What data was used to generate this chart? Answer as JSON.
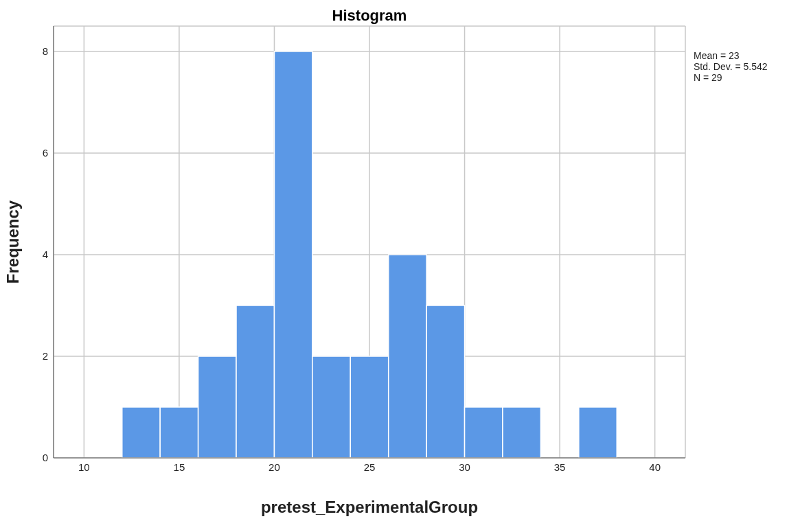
{
  "chart_data": {
    "type": "histogram",
    "title": "Histogram",
    "xlabel": "pretest_ExperimentalGroup",
    "ylabel": "Frequency",
    "bins": [
      12,
      14,
      16,
      18,
      20,
      22,
      24,
      26,
      28,
      30,
      32,
      34,
      36,
      38
    ],
    "values": [
      1,
      1,
      2,
      3,
      8,
      2,
      2,
      4,
      3,
      1,
      1,
      0,
      1
    ],
    "color": "#5b98e6",
    "xlim": [
      8.4,
      41.6
    ],
    "xticks": [
      10,
      15,
      20,
      25,
      30,
      35,
      40
    ],
    "ylim": [
      0,
      8.5
    ],
    "yticks": [
      0,
      2,
      4,
      6,
      8
    ],
    "grid": true,
    "annotations": [
      "Mean = 23",
      "Std. Dev. = 5.542",
      "N = 29"
    ]
  }
}
